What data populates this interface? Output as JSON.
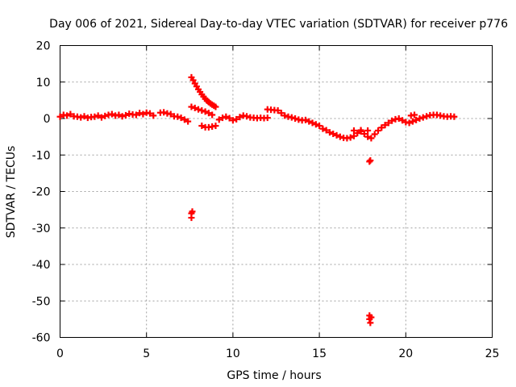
{
  "chart_data": {
    "type": "scatter",
    "title": "Day 006 of 2021, Sidereal Day-to-day VTEC variation (SDTVAR) for receiver p776",
    "xlabel": "GPS time / hours",
    "ylabel": "SDTVAR / TECUs",
    "xlim": [
      0,
      25
    ],
    "ylim": [
      -60,
      20
    ],
    "xticks": [
      0,
      5,
      10,
      15,
      20,
      25
    ],
    "yticks": [
      20,
      10,
      0,
      -10,
      -20,
      -30,
      -40,
      -50,
      -60
    ],
    "grid": true,
    "marker": "+",
    "series": [
      {
        "name": "SDTVAR",
        "color": "#ff0000",
        "points": [
          [
            0.0,
            0.5
          ],
          [
            0.2,
            1.0
          ],
          [
            0.4,
            0.8
          ],
          [
            0.6,
            1.2
          ],
          [
            0.8,
            0.6
          ],
          [
            1.0,
            0.5
          ],
          [
            1.2,
            0.3
          ],
          [
            1.4,
            0.6
          ],
          [
            1.6,
            0.2
          ],
          [
            1.8,
            0.4
          ],
          [
            2.0,
            0.5
          ],
          [
            2.2,
            0.8
          ],
          [
            2.4,
            0.3
          ],
          [
            2.6,
            0.7
          ],
          [
            2.8,
            1.0
          ],
          [
            3.0,
            1.2
          ],
          [
            3.2,
            0.8
          ],
          [
            3.4,
            1.0
          ],
          [
            3.6,
            0.6
          ],
          [
            3.8,
            0.9
          ],
          [
            4.0,
            1.3
          ],
          [
            4.2,
            1.1
          ],
          [
            4.4,
            1.0
          ],
          [
            4.6,
            1.5
          ],
          [
            4.8,
            1.2
          ],
          [
            5.0,
            1.6
          ],
          [
            5.2,
            1.4
          ],
          [
            5.4,
            0.8
          ],
          [
            5.8,
            1.6
          ],
          [
            6.0,
            1.7
          ],
          [
            6.2,
            1.4
          ],
          [
            6.4,
            1.2
          ],
          [
            6.6,
            0.6
          ],
          [
            6.8,
            0.5
          ],
          [
            7.0,
            0.2
          ],
          [
            7.2,
            -0.3
          ],
          [
            7.4,
            -0.8
          ],
          [
            7.6,
            11.3
          ],
          [
            7.7,
            10.5
          ],
          [
            7.8,
            9.6
          ],
          [
            7.9,
            8.8
          ],
          [
            8.0,
            8.0
          ],
          [
            8.1,
            7.3
          ],
          [
            8.2,
            6.6
          ],
          [
            8.3,
            6.0
          ],
          [
            8.4,
            5.4
          ],
          [
            8.5,
            4.9
          ],
          [
            8.6,
            4.5
          ],
          [
            8.7,
            4.1
          ],
          [
            8.8,
            3.8
          ],
          [
            8.9,
            3.5
          ],
          [
            9.0,
            3.2
          ],
          [
            7.6,
            3.2
          ],
          [
            7.8,
            2.9
          ],
          [
            8.0,
            2.5
          ],
          [
            8.2,
            2.2
          ],
          [
            8.4,
            1.9
          ],
          [
            8.6,
            1.5
          ],
          [
            8.8,
            1.0
          ],
          [
            8.2,
            -2.0
          ],
          [
            8.4,
            -2.4
          ],
          [
            8.6,
            -2.4
          ],
          [
            8.8,
            -2.2
          ],
          [
            9.0,
            -2.0
          ],
          [
            7.6,
            -26.0
          ],
          [
            7.6,
            -27.2
          ],
          [
            7.65,
            -25.5
          ],
          [
            9.2,
            -0.3
          ],
          [
            9.4,
            0.2
          ],
          [
            9.6,
            0.5
          ],
          [
            9.8,
            0.1
          ],
          [
            10.0,
            -0.5
          ],
          [
            10.2,
            -0.2
          ],
          [
            10.4,
            0.4
          ],
          [
            10.6,
            0.8
          ],
          [
            10.8,
            0.6
          ],
          [
            11.0,
            0.3
          ],
          [
            11.2,
            0.2
          ],
          [
            11.4,
            0.1
          ],
          [
            11.6,
            0.2
          ],
          [
            11.8,
            0.1
          ],
          [
            12.0,
            0.2
          ],
          [
            12.0,
            2.5
          ],
          [
            12.2,
            2.4
          ],
          [
            12.4,
            2.3
          ],
          [
            12.6,
            2.2
          ],
          [
            12.8,
            1.5
          ],
          [
            13.0,
            0.8
          ],
          [
            13.2,
            0.5
          ],
          [
            13.4,
            0.3
          ],
          [
            13.6,
            0.0
          ],
          [
            13.8,
            -0.3
          ],
          [
            14.0,
            -0.5
          ],
          [
            14.2,
            -0.4
          ],
          [
            14.4,
            -0.8
          ],
          [
            14.6,
            -1.2
          ],
          [
            14.8,
            -1.6
          ],
          [
            15.0,
            -2.0
          ],
          [
            15.2,
            -2.8
          ],
          [
            15.4,
            -3.2
          ],
          [
            15.6,
            -3.8
          ],
          [
            15.8,
            -4.2
          ],
          [
            16.0,
            -4.6
          ],
          [
            16.2,
            -5.0
          ],
          [
            16.4,
            -5.3
          ],
          [
            16.6,
            -5.4
          ],
          [
            16.8,
            -5.2
          ],
          [
            17.0,
            -4.8
          ],
          [
            17.2,
            -4.0
          ],
          [
            17.4,
            -3.5
          ],
          [
            17.6,
            -4.2
          ],
          [
            17.8,
            -5.0
          ],
          [
            18.0,
            -5.4
          ],
          [
            17.0,
            -3.3
          ],
          [
            17.4,
            -3.2
          ],
          [
            17.8,
            -3.3
          ],
          [
            17.95,
            -11.5
          ],
          [
            17.9,
            -11.8
          ],
          [
            17.9,
            -54.0
          ],
          [
            17.9,
            -55.0
          ],
          [
            17.95,
            -56.0
          ],
          [
            18.0,
            -54.5
          ],
          [
            18.2,
            -4.3
          ],
          [
            18.4,
            -3.3
          ],
          [
            18.6,
            -2.5
          ],
          [
            18.8,
            -1.8
          ],
          [
            19.0,
            -1.2
          ],
          [
            19.2,
            -0.6
          ],
          [
            19.4,
            -0.2
          ],
          [
            19.6,
            0.0
          ],
          [
            19.8,
            -0.5
          ],
          [
            20.0,
            -1.0
          ],
          [
            20.2,
            -1.2
          ],
          [
            20.4,
            -0.8
          ],
          [
            20.6,
            -0.4
          ],
          [
            20.8,
            0.0
          ],
          [
            21.0,
            0.3
          ],
          [
            21.2,
            0.6
          ],
          [
            21.4,
            0.9
          ],
          [
            21.6,
            1.0
          ],
          [
            21.8,
            1.0
          ],
          [
            22.0,
            0.8
          ],
          [
            22.2,
            0.6
          ],
          [
            22.4,
            0.5
          ],
          [
            22.6,
            0.6
          ],
          [
            22.8,
            0.5
          ],
          [
            20.3,
            0.8
          ],
          [
            20.5,
            1.0
          ]
        ]
      }
    ]
  }
}
